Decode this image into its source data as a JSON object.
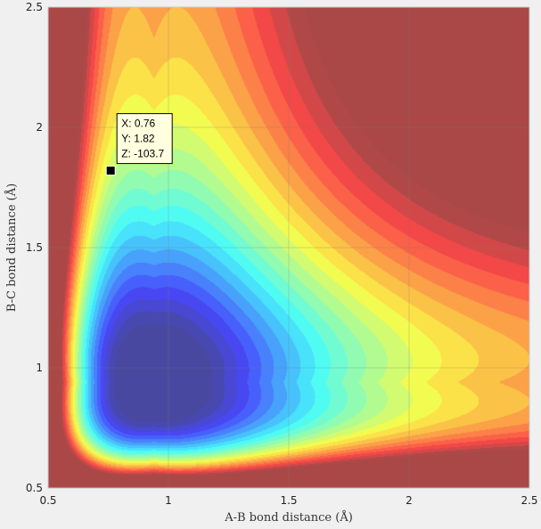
{
  "chart_data": {
    "type": "contour",
    "title": "",
    "xlabel": "A-B bond distance (Å)",
    "ylabel": "B-C bond distance (Å)",
    "xlim": [
      0.5,
      2.5
    ],
    "ylim": [
      0.5,
      2.5
    ],
    "x_ticks": [
      "0.5",
      "1",
      "1.5",
      "2",
      "2.5"
    ],
    "y_ticks": [
      "0.5",
      "1",
      "1.5",
      "2",
      "2.5"
    ],
    "grid": true,
    "colormap": "jet",
    "fill_alpha": 0.7,
    "z_range_approx": [
      -112,
      0
    ],
    "minimum_valley": {
      "x": 2.5,
      "y": 0.94
    },
    "datatip": {
      "x": 0.76,
      "y": 1.82,
      "lines": [
        "X: 0.76",
        "Y: 1.82",
        "Z: -103.7"
      ]
    }
  }
}
